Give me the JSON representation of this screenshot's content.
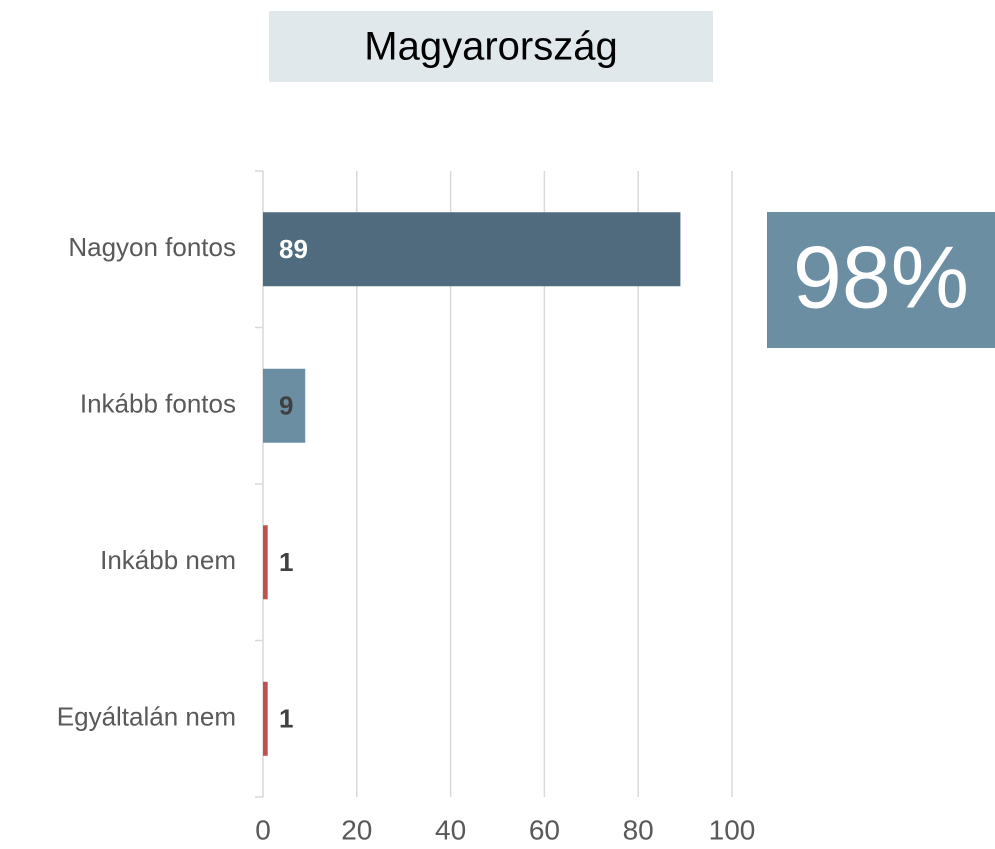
{
  "chart_data": {
    "type": "bar",
    "orientation": "horizontal",
    "title": "Magyarország",
    "categories": [
      "Nagyon fontos",
      "Inkább fontos",
      "Inkább nem",
      "Egyáltalán nem"
    ],
    "values": [
      89,
      9,
      1,
      1
    ],
    "colors": [
      "#4f6b7d",
      "#6b8ea3",
      "#c0504d",
      "#c0504d"
    ],
    "label_colors": [
      "#ffffff",
      "#404040",
      "#404040",
      "#404040"
    ],
    "xlim": [
      0,
      100
    ],
    "xticks": [
      0,
      20,
      40,
      60,
      80,
      100
    ],
    "grid": true,
    "callout": "98%"
  }
}
